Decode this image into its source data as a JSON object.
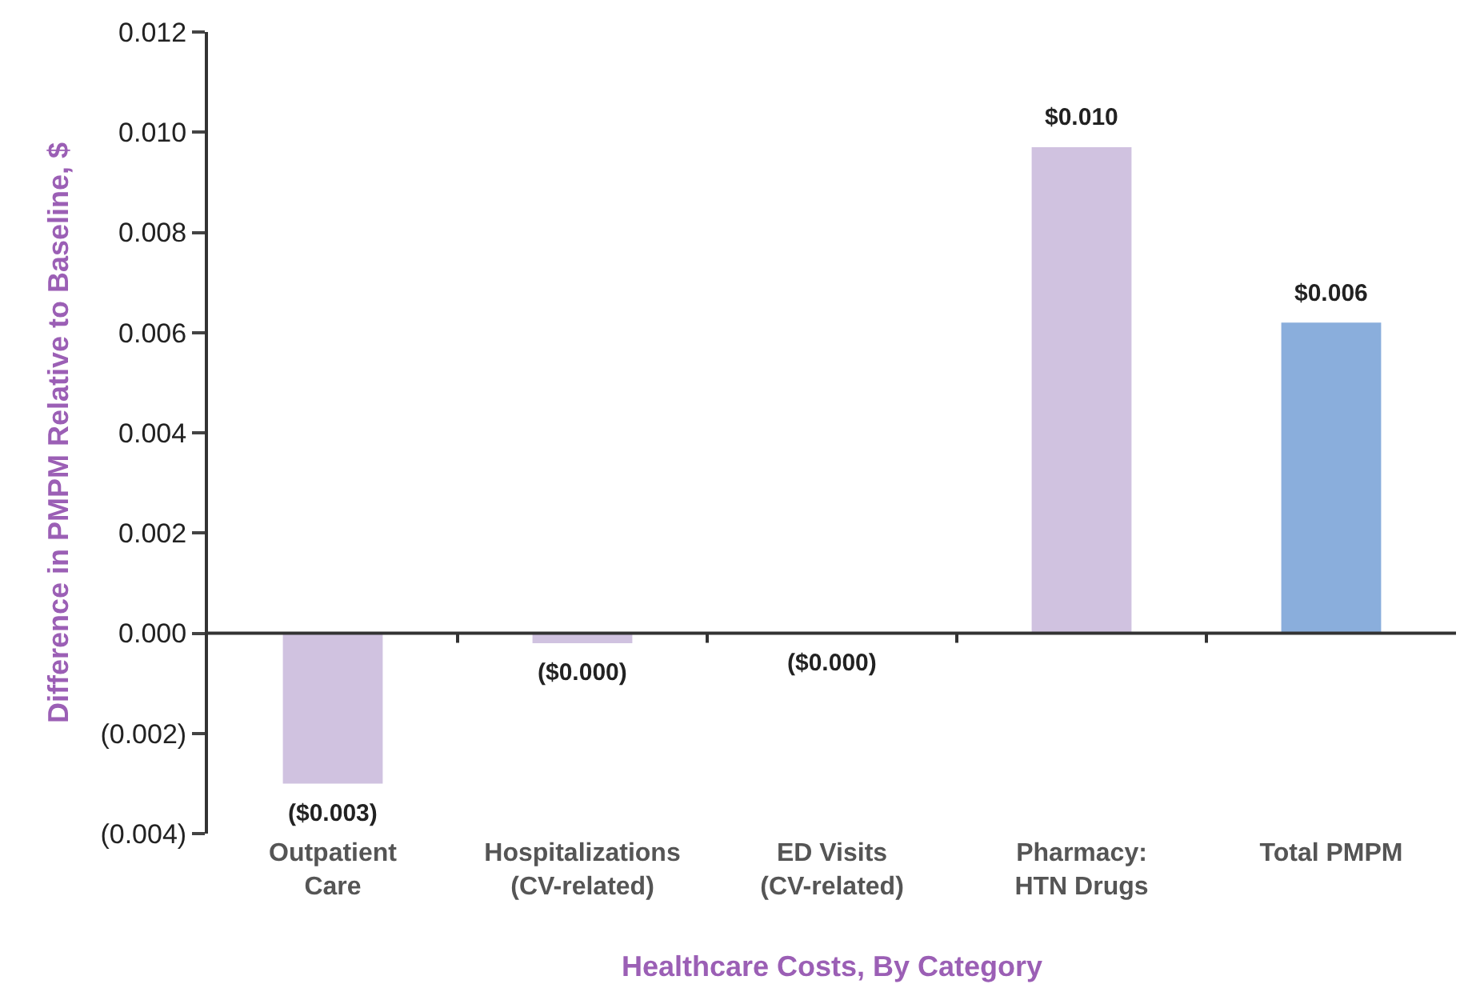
{
  "chart_data": {
    "type": "bar",
    "xlabel": "Healthcare Costs, By Category",
    "ylabel": "Difference in PMPM Relative to Baseline, $",
    "categories": [
      "Outpatient\nCare",
      "Hospitalizations\n(CV-related)",
      "ED Visits\n(CV-related)",
      "Pharmacy:\nHTN Drugs",
      "Total PMPM"
    ],
    "values": [
      -0.003,
      -0.0002,
      0,
      0.0097,
      0.0062
    ],
    "colors": [
      "#d0c2e0",
      "#d0c2e0",
      "#d0c2e0",
      "#d0c2e0",
      "#8aaedc"
    ],
    "value_labels": [
      "($0.003)",
      "($0.000)",
      "($0.000)",
      "$0.010",
      "$0.006"
    ],
    "ylim": [
      -0.004,
      0.012
    ],
    "yticks": [
      {
        "value": -0.004,
        "label": "(0.004)"
      },
      {
        "value": -0.002,
        "label": "(0.002)"
      },
      {
        "value": 0,
        "label": "0.000"
      },
      {
        "value": 0.002,
        "label": "0.002"
      },
      {
        "value": 0.004,
        "label": "0.004"
      },
      {
        "value": 0.006,
        "label": "0.006"
      },
      {
        "value": 0.008,
        "label": "0.008"
      },
      {
        "value": 0.01,
        "label": "0.010"
      },
      {
        "value": 0.012,
        "label": "0.012"
      }
    ],
    "legend": false
  }
}
